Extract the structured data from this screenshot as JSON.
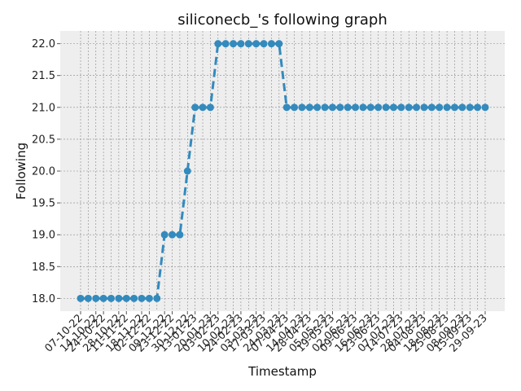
{
  "chart_data": {
    "type": "line",
    "title": "siliconecb_'s following graph",
    "xlabel": "Timestamp",
    "ylabel": "Following",
    "ylim": [
      17.8,
      22.2
    ],
    "y_ticks": [
      "18.0",
      "18.5",
      "19.0",
      "19.5",
      "20.0",
      "20.5",
      "21.0",
      "21.5",
      "22.0"
    ],
    "grid": true,
    "line_style": "dashed",
    "marker": "circle",
    "colors": {
      "series": "#348abd",
      "plot_background": "#eeeeee",
      "grid": "#888888"
    },
    "x_tick_labels": [
      "07-10-22",
      "14-10-22",
      "24-10-22",
      "28-10-22",
      "11-11-22",
      "18-11-22",
      "02-12-22",
      "09-12-22",
      "23-12-22",
      "30-12-22",
      "13-01-23",
      "20-01-23",
      "03-02-23",
      "10-02-23",
      "24-02-23",
      "03-03-23",
      "17-03-23",
      "24-03-23",
      "07-04-23",
      "14-04-23",
      "28-04-23",
      "05-05-23",
      "19-05-23",
      "02-06-23",
      "09-06-23",
      "16-06-23",
      "23-06-23",
      "07-07-23",
      "14-07-23",
      "28-07-23",
      "04-08-23",
      "18-08-23",
      "25-08-23",
      "08-09-23",
      "15-09-23",
      "29-09-23"
    ],
    "series": [
      {
        "values": [
          18,
          18,
          18,
          18,
          18,
          18,
          18,
          18,
          18,
          18,
          18,
          19,
          19,
          19,
          20,
          21,
          21,
          21,
          22,
          22,
          22,
          22,
          22,
          22,
          22,
          22,
          22,
          21,
          21,
          21,
          21,
          21,
          21,
          21,
          21,
          21,
          21,
          21,
          21,
          21,
          21,
          21,
          21,
          21,
          21,
          21,
          21,
          21,
          21,
          21,
          21,
          21,
          21,
          21
        ]
      }
    ]
  }
}
